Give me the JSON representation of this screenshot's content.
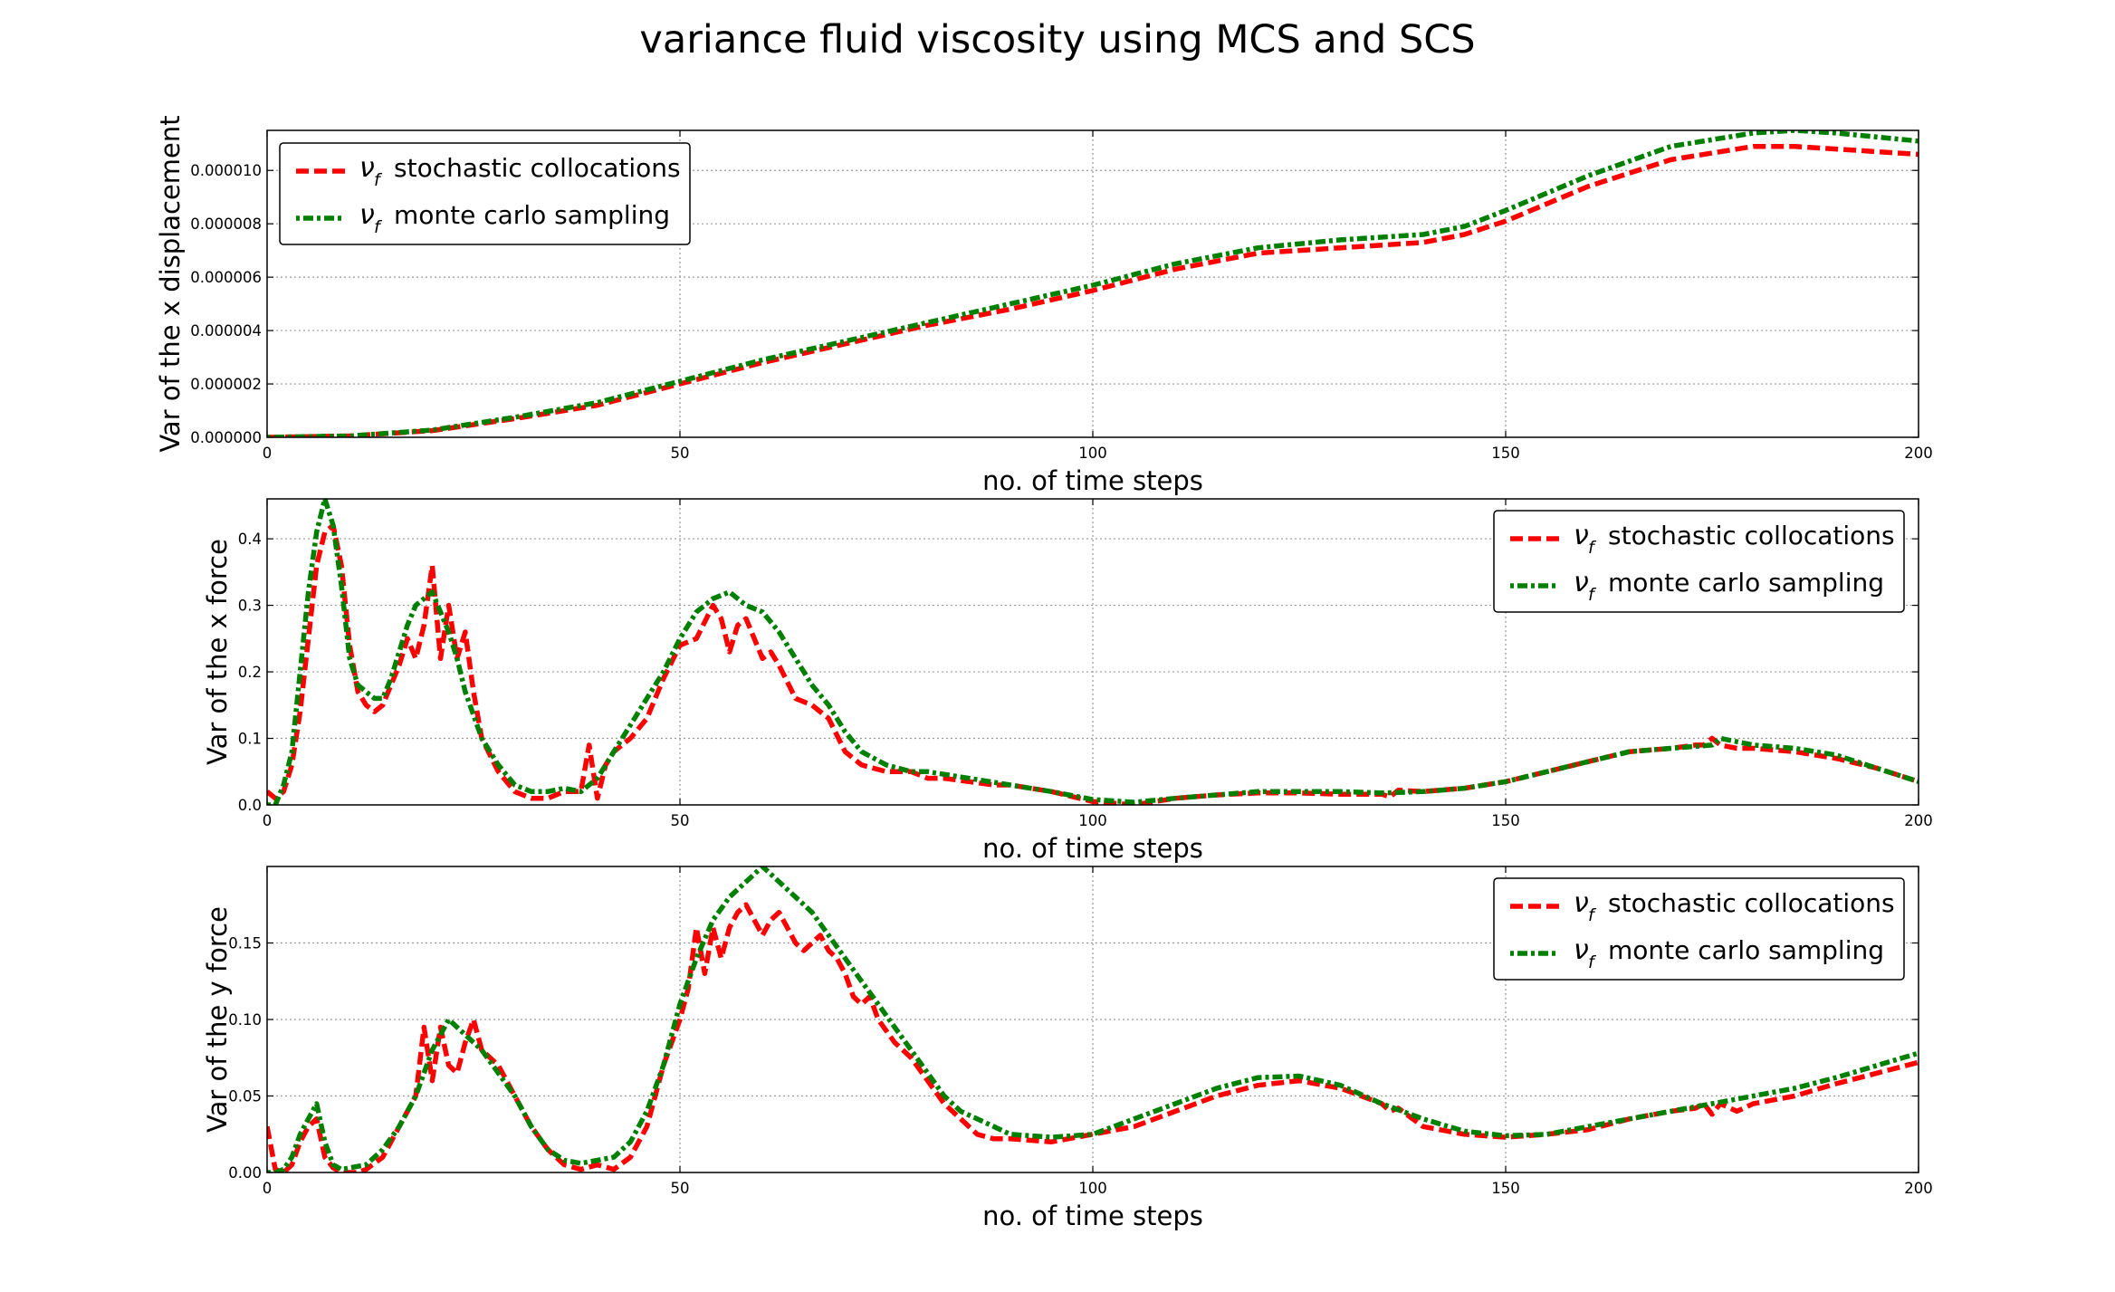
{
  "figure": {
    "title": "variance fluid viscosity using MCS and SCS"
  },
  "colors": {
    "series1": "#ff0000",
    "series2": "#008000",
    "grid": "#9a9a9a",
    "axes": "#000000"
  },
  "chart_data": [
    {
      "type": "line",
      "xlabel": "no. of time steps",
      "ylabel": "Var of the x displacement",
      "xlim": [
        0,
        200
      ],
      "ylim": [
        0,
        1.15e-05
      ],
      "xticks": [
        "0",
        "50",
        "100",
        "150",
        "200"
      ],
      "yticks": [
        "0.000000",
        "0.000002",
        "0.000004",
        "0.000006",
        "0.000008",
        "0.000010"
      ],
      "ytick_values": [
        0,
        2e-06,
        4e-06,
        6e-06,
        8e-06,
        1e-05
      ],
      "grid": true,
      "legend_position": "top-left",
      "series": [
        {
          "name": "stochastic collocations",
          "symbol": "ν",
          "subscript": "f",
          "style": "dashed",
          "color": "#ff0000",
          "x": [
            0,
            10,
            20,
            30,
            40,
            50,
            60,
            70,
            80,
            90,
            100,
            110,
            120,
            130,
            140,
            145,
            150,
            160,
            170,
            180,
            185,
            190,
            200
          ],
          "y": [
            0,
            5e-08,
            2.5e-07,
            7e-07,
            1.2e-06,
            2e-06,
            2.8e-06,
            3.5e-06,
            4.2e-06,
            4.8e-06,
            5.5e-06,
            6.3e-06,
            6.9e-06,
            7.1e-06,
            7.3e-06,
            7.6e-06,
            8.1e-06,
            9.4e-06,
            1.04e-05,
            1.09e-05,
            1.09e-05,
            1.08e-05,
            1.06e-05
          ]
        },
        {
          "name": "monte carlo sampling",
          "symbol": "ν",
          "subscript": "f",
          "style": "dashdot",
          "color": "#008000",
          "x": [
            0,
            10,
            20,
            30,
            40,
            50,
            60,
            70,
            80,
            90,
            100,
            110,
            120,
            130,
            140,
            145,
            150,
            160,
            170,
            180,
            185,
            190,
            200
          ],
          "y": [
            0,
            5e-08,
            2.7e-07,
            7.5e-07,
            1.3e-06,
            2.1e-06,
            2.9e-06,
            3.6e-06,
            4.3e-06,
            5e-06,
            5.7e-06,
            6.5e-06,
            7.1e-06,
            7.4e-06,
            7.6e-06,
            7.9e-06,
            8.5e-06,
            9.8e-06,
            1.09e-05,
            1.14e-05,
            1.15e-05,
            1.14e-05,
            1.11e-05
          ]
        }
      ]
    },
    {
      "type": "line",
      "xlabel": "no. of time steps",
      "ylabel": "Var of the x force",
      "xlim": [
        0,
        200
      ],
      "ylim": [
        0,
        0.46
      ],
      "xticks": [
        "0",
        "50",
        "100",
        "150",
        "200"
      ],
      "yticks": [
        "0.0",
        "0.1",
        "0.2",
        "0.3",
        "0.4"
      ],
      "ytick_values": [
        0,
        0.1,
        0.2,
        0.3,
        0.4
      ],
      "grid": true,
      "legend_position": "top-right",
      "series": [
        {
          "name": "stochastic collocations",
          "symbol": "ν",
          "subscript": "f",
          "style": "dashed",
          "color": "#ff0000",
          "x": [
            0,
            1,
            2,
            3,
            4,
            5,
            6,
            7,
            8,
            9,
            10,
            11,
            12,
            13,
            14,
            15,
            16,
            17,
            18,
            19,
            20,
            21,
            22,
            23,
            24,
            25,
            26,
            28,
            30,
            32,
            34,
            36,
            38,
            39,
            40,
            41,
            42,
            44,
            46,
            48,
            50,
            52,
            54,
            55,
            56,
            57,
            58,
            60,
            61,
            62,
            64,
            66,
            68,
            70,
            72,
            75,
            78,
            80,
            82,
            85,
            88,
            90,
            95,
            100,
            105,
            110,
            115,
            120,
            125,
            130,
            135,
            136,
            137,
            140,
            145,
            150,
            155,
            160,
            165,
            170,
            173,
            174,
            175,
            176,
            178,
            180,
            185,
            190,
            195,
            200
          ],
          "y": [
            0.02,
            0.01,
            0.02,
            0.06,
            0.14,
            0.25,
            0.36,
            0.41,
            0.42,
            0.36,
            0.24,
            0.17,
            0.15,
            0.14,
            0.15,
            0.18,
            0.21,
            0.25,
            0.22,
            0.27,
            0.36,
            0.22,
            0.3,
            0.22,
            0.26,
            0.17,
            0.1,
            0.05,
            0.02,
            0.01,
            0.01,
            0.02,
            0.02,
            0.09,
            0.01,
            0.06,
            0.08,
            0.1,
            0.13,
            0.19,
            0.24,
            0.25,
            0.3,
            0.28,
            0.23,
            0.27,
            0.28,
            0.22,
            0.23,
            0.21,
            0.16,
            0.15,
            0.13,
            0.08,
            0.06,
            0.05,
            0.05,
            0.04,
            0.04,
            0.035,
            0.03,
            0.03,
            0.02,
            0.005,
            0.0,
            0.01,
            0.015,
            0.018,
            0.018,
            0.016,
            0.016,
            0.012,
            0.022,
            0.02,
            0.025,
            0.035,
            0.05,
            0.065,
            0.08,
            0.085,
            0.09,
            0.09,
            0.1,
            0.09,
            0.085,
            0.085,
            0.08,
            0.07,
            0.055,
            0.035
          ]
        },
        {
          "name": "monte carlo sampling",
          "symbol": "ν",
          "subscript": "f",
          "style": "dashdot",
          "color": "#008000",
          "x": [
            0,
            1,
            2,
            3,
            4,
            5,
            6,
            7,
            8,
            9,
            10,
            11,
            12,
            13,
            14,
            15,
            16,
            17,
            18,
            19,
            20,
            21,
            22,
            23,
            24,
            26,
            28,
            30,
            32,
            34,
            36,
            38,
            40,
            42,
            44,
            46,
            48,
            50,
            52,
            54,
            56,
            58,
            60,
            62,
            64,
            66,
            68,
            70,
            72,
            75,
            78,
            80,
            85,
            90,
            95,
            100,
            105,
            110,
            115,
            120,
            125,
            130,
            135,
            140,
            145,
            150,
            155,
            160,
            165,
            170,
            175,
            176,
            180,
            185,
            190,
            195,
            200
          ],
          "y": [
            0,
            0,
            0.03,
            0.08,
            0.2,
            0.32,
            0.41,
            0.46,
            0.42,
            0.33,
            0.22,
            0.18,
            0.17,
            0.16,
            0.16,
            0.19,
            0.23,
            0.27,
            0.3,
            0.31,
            0.32,
            0.29,
            0.26,
            0.22,
            0.17,
            0.1,
            0.06,
            0.03,
            0.02,
            0.02,
            0.025,
            0.02,
            0.04,
            0.08,
            0.12,
            0.16,
            0.2,
            0.25,
            0.29,
            0.31,
            0.32,
            0.3,
            0.29,
            0.26,
            0.22,
            0.18,
            0.15,
            0.11,
            0.08,
            0.06,
            0.05,
            0.05,
            0.04,
            0.03,
            0.02,
            0.008,
            0.004,
            0.01,
            0.015,
            0.02,
            0.02,
            0.02,
            0.018,
            0.02,
            0.025,
            0.035,
            0.05,
            0.065,
            0.08,
            0.085,
            0.09,
            0.1,
            0.09,
            0.085,
            0.075,
            0.055,
            0.035
          ]
        }
      ]
    },
    {
      "type": "line",
      "xlabel": "no. of time steps",
      "ylabel": "Var of the y force",
      "xlim": [
        0,
        200
      ],
      "ylim": [
        0,
        0.2
      ],
      "xticks": [
        "0",
        "50",
        "100",
        "150",
        "200"
      ],
      "yticks": [
        "0.00",
        "0.05",
        "0.10",
        "0.15"
      ],
      "ytick_values": [
        0,
        0.05,
        0.1,
        0.15
      ],
      "grid": true,
      "legend_position": "top-right",
      "series": [
        {
          "name": "stochastic collocations",
          "symbol": "ν",
          "subscript": "f",
          "style": "dashed",
          "color": "#ff0000",
          "x": [
            0,
            1,
            2,
            3,
            4,
            5,
            6,
            7,
            8,
            9,
            10,
            11,
            12,
            14,
            16,
            18,
            19,
            20,
            21,
            22,
            23,
            24,
            25,
            26,
            28,
            30,
            32,
            34,
            36,
            38,
            40,
            42,
            44,
            46,
            48,
            50,
            51,
            52,
            53,
            54,
            55,
            56,
            57,
            58,
            59,
            60,
            61,
            62,
            63,
            64,
            65,
            66,
            67,
            68,
            69,
            70,
            71,
            72,
            73,
            74,
            76,
            78,
            80,
            82,
            84,
            86,
            88,
            90,
            95,
            100,
            105,
            110,
            115,
            120,
            125,
            130,
            135,
            136,
            137,
            140,
            145,
            150,
            155,
            160,
            165,
            170,
            173,
            174,
            175,
            176,
            178,
            180,
            185,
            190,
            195,
            200
          ],
          "y": [
            0.03,
            0.002,
            0,
            0.005,
            0.02,
            0.03,
            0.035,
            0.01,
            0.003,
            0,
            0,
            0,
            0.002,
            0.01,
            0.03,
            0.05,
            0.095,
            0.06,
            0.095,
            0.07,
            0.065,
            0.085,
            0.1,
            0.08,
            0.07,
            0.05,
            0.03,
            0.015,
            0.005,
            0.002,
            0.005,
            0.002,
            0.01,
            0.03,
            0.07,
            0.1,
            0.12,
            0.16,
            0.13,
            0.16,
            0.14,
            0.16,
            0.17,
            0.175,
            0.165,
            0.155,
            0.165,
            0.17,
            0.16,
            0.15,
            0.145,
            0.15,
            0.155,
            0.145,
            0.14,
            0.13,
            0.115,
            0.11,
            0.115,
            0.1,
            0.085,
            0.075,
            0.06,
            0.045,
            0.035,
            0.025,
            0.022,
            0.022,
            0.02,
            0.025,
            0.03,
            0.04,
            0.05,
            0.057,
            0.06,
            0.055,
            0.045,
            0.04,
            0.042,
            0.03,
            0.025,
            0.023,
            0.025,
            0.028,
            0.035,
            0.04,
            0.042,
            0.045,
            0.038,
            0.045,
            0.04,
            0.045,
            0.05,
            0.058,
            0.065,
            0.072
          ]
        },
        {
          "name": "monte carlo sampling",
          "symbol": "ν",
          "subscript": "f",
          "style": "dashdot",
          "color": "#008000",
          "x": [
            0,
            1,
            2,
            3,
            4,
            5,
            6,
            7,
            8,
            9,
            10,
            11,
            12,
            14,
            16,
            18,
            20,
            22,
            24,
            26,
            28,
            30,
            32,
            34,
            36,
            38,
            40,
            42,
            44,
            46,
            48,
            50,
            52,
            54,
            56,
            58,
            60,
            62,
            64,
            66,
            68,
            70,
            72,
            74,
            76,
            78,
            80,
            82,
            84,
            86,
            88,
            90,
            95,
            100,
            105,
            110,
            115,
            120,
            125,
            130,
            135,
            140,
            145,
            150,
            155,
            160,
            165,
            170,
            175,
            180,
            185,
            190,
            195,
            200
          ],
          "y": [
            0,
            0,
            0.002,
            0.01,
            0.025,
            0.035,
            0.045,
            0.02,
            0.005,
            0.002,
            0.003,
            0.004,
            0.005,
            0.015,
            0.03,
            0.05,
            0.08,
            0.1,
            0.09,
            0.08,
            0.065,
            0.05,
            0.03,
            0.015,
            0.008,
            0.006,
            0.008,
            0.01,
            0.02,
            0.04,
            0.07,
            0.11,
            0.14,
            0.165,
            0.18,
            0.19,
            0.2,
            0.19,
            0.18,
            0.17,
            0.155,
            0.14,
            0.125,
            0.11,
            0.095,
            0.08,
            0.065,
            0.05,
            0.04,
            0.035,
            0.03,
            0.025,
            0.023,
            0.025,
            0.035,
            0.045,
            0.055,
            0.062,
            0.063,
            0.057,
            0.045,
            0.035,
            0.027,
            0.024,
            0.025,
            0.03,
            0.035,
            0.04,
            0.045,
            0.05,
            0.055,
            0.062,
            0.07,
            0.078
          ]
        }
      ]
    }
  ]
}
